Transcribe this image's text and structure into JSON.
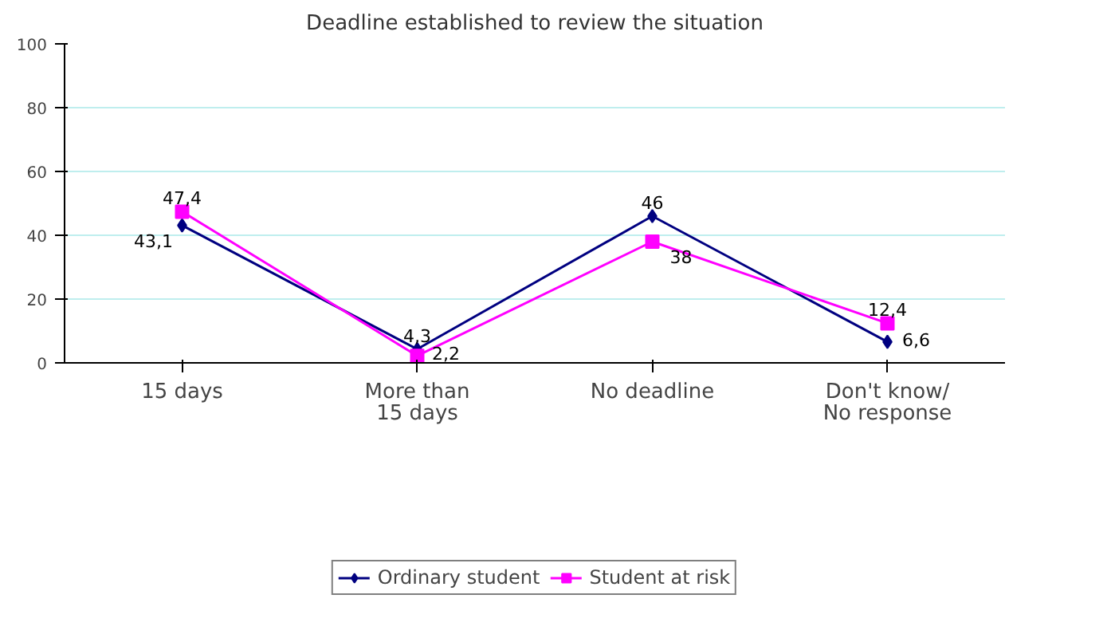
{
  "chart_data": {
    "type": "line",
    "title": "Deadline established to review the situation",
    "categories": [
      "15 days",
      "More than\n15 days",
      "No deadline",
      "Don't know/\nNo response"
    ],
    "series": [
      {
        "name": "Ordinary student",
        "color": "#000080",
        "marker": "diamond",
        "values": [
          43.1,
          4.3,
          46,
          6.6
        ],
        "value_labels": [
          "43,1",
          "4,3",
          "46",
          "6,6"
        ]
      },
      {
        "name": "Student at risk",
        "color": "#ff00ff",
        "marker": "square",
        "values": [
          47.4,
          2.2,
          38,
          12.4
        ],
        "value_labels": [
          "47,4",
          "2,2",
          "38",
          "12,4"
        ]
      }
    ],
    "ylim": [
      0,
      100
    ],
    "yticks": [
      0,
      20,
      40,
      60,
      80,
      100
    ],
    "grid": "y",
    "legend": "bottom",
    "line_style": "solid"
  }
}
